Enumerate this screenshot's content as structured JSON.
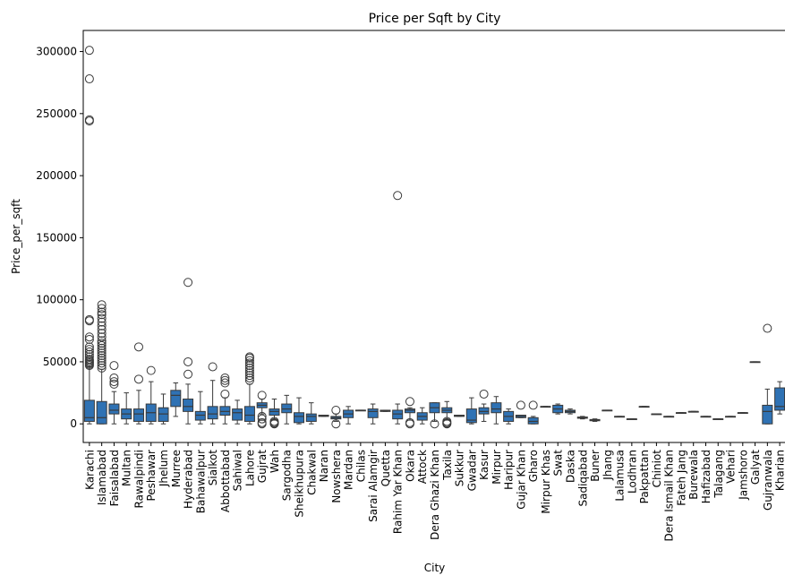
{
  "chart_data": {
    "type": "box",
    "title": "Price per Sqft by City",
    "xlabel": "City",
    "ylabel": "Price_per_sqft",
    "ylim": [
      -15000,
      317000
    ],
    "yticks": [
      0,
      50000,
      100000,
      150000,
      200000,
      250000,
      300000
    ],
    "ytick_labels": [
      "0",
      "50000",
      "100000",
      "150000",
      "200000",
      "250000",
      "300000"
    ],
    "box_color": "#2f72b4",
    "box_edge_color": "#3a3a3a",
    "grid": false,
    "categories": [
      "Karachi",
      "Islamabad",
      "Faisalabad",
      "Multan",
      "Rawalpindi",
      "Peshawar",
      "Jhelum",
      "Murree",
      "Hyderabad",
      "Bahawalpur",
      "Sialkot",
      "Abbottabad",
      "Sahiwal",
      "Lahore",
      "Gujrat",
      "Wah",
      "Sargodha",
      "Sheikhupura",
      "Chakwal",
      "Naran",
      "Nowshera",
      "Mardan",
      "Chilas",
      "Sarai Alamgir",
      "Quetta",
      "Rahim Yar Khan",
      "Okara",
      "Attock",
      "Dera Ghazi Khan",
      "Taxila",
      "Sukkur",
      "Gwadar",
      "Kasur",
      "Mirpur",
      "Haripur",
      "Gujar Khan",
      "Gharo",
      "Mirpur Khas",
      "Swat",
      "Daska",
      "Sadiqabad",
      "Buner",
      "Jhang",
      "Lalamusa",
      "Lodhran",
      "Pakpattan",
      "Chiniot",
      "Dera Ismail Khan",
      "Fateh Jang",
      "Burewala",
      "Hafizabad",
      "Talagang",
      "Vehari",
      "Jamshoro",
      "Galyat",
      "Gujranwala",
      "Kharian"
    ],
    "boxes": [
      {
        "whislo": 0,
        "q1": 2000,
        "med": 5000,
        "q3": 19000,
        "whishi": 46000,
        "fliers": [
          47000,
          48000,
          49000,
          50000,
          51000,
          52000,
          54000,
          56000,
          58000,
          60000,
          62000,
          68000,
          70000,
          83000,
          84000,
          244000,
          245000,
          278000,
          301000
        ]
      },
      {
        "whislo": 0,
        "q1": 0,
        "med": 5000,
        "q3": 18000,
        "whishi": 44000,
        "fliers": [
          45000,
          47000,
          49000,
          51000,
          53000,
          55000,
          57000,
          59000,
          61000,
          63000,
          65000,
          67000,
          70000,
          73000,
          76000,
          79000,
          82000,
          85000,
          88000,
          90000,
          93000,
          96000
        ]
      },
      {
        "whislo": 0,
        "q1": 8000,
        "med": 11000,
        "q3": 16000,
        "whishi": 26000,
        "fliers": [
          32000,
          34000,
          37000,
          47000
        ]
      },
      {
        "whislo": 0,
        "q1": 4000,
        "med": 8000,
        "q3": 12000,
        "whishi": 25000,
        "fliers": []
      },
      {
        "whislo": 0,
        "q1": 2000,
        "med": 8000,
        "q3": 12000,
        "whishi": 27000,
        "fliers": [
          36000,
          62000
        ]
      },
      {
        "whislo": 0,
        "q1": 2000,
        "med": 9000,
        "q3": 16000,
        "whishi": 34000,
        "fliers": [
          43000
        ]
      },
      {
        "whislo": 0,
        "q1": 2000,
        "med": 8000,
        "q3": 13000,
        "whishi": 24000,
        "fliers": []
      },
      {
        "whislo": 6000,
        "q1": 14000,
        "med": 23000,
        "q3": 27000,
        "whishi": 33000,
        "fliers": []
      },
      {
        "whislo": 0,
        "q1": 10000,
        "med": 14000,
        "q3": 20000,
        "whishi": 32000,
        "fliers": [
          40000,
          50000,
          114000
        ]
      },
      {
        "whislo": 0,
        "q1": 3000,
        "med": 7000,
        "q3": 10000,
        "whishi": 26000,
        "fliers": []
      },
      {
        "whislo": 0,
        "q1": 4000,
        "med": 8000,
        "q3": 14000,
        "whishi": 35000,
        "fliers": [
          46000
        ]
      },
      {
        "whislo": 0,
        "q1": 7000,
        "med": 10000,
        "q3": 14000,
        "whishi": 21000,
        "fliers": [
          24000,
          33000,
          35000,
          37000
        ]
      },
      {
        "whislo": 0,
        "q1": 3000,
        "med": 9000,
        "q3": 12000,
        "whishi": 19000,
        "fliers": []
      },
      {
        "whislo": 0,
        "q1": 2000,
        "med": 7000,
        "q3": 14000,
        "whishi": 32000,
        "fliers": [
          35000,
          37000,
          39000,
          41000,
          43000,
          45000,
          47000,
          49000,
          51000,
          53000,
          54000
        ]
      },
      {
        "whislo": 8000,
        "q1": 13000,
        "med": 15000,
        "q3": 17000,
        "whishi": 20000,
        "fliers": [
          0,
          1000,
          4000,
          6000,
          23000
        ]
      },
      {
        "whislo": 3000,
        "q1": 7000,
        "med": 10000,
        "q3": 12000,
        "whishi": 20000,
        "fliers": [
          0,
          500,
          1000,
          2000
        ]
      },
      {
        "whislo": 0,
        "q1": 9000,
        "med": 12000,
        "q3": 16000,
        "whishi": 23000,
        "fliers": []
      },
      {
        "whislo": 0,
        "q1": 1000,
        "med": 6000,
        "q3": 9000,
        "whishi": 21000,
        "fliers": []
      },
      {
        "whislo": 0,
        "q1": 2000,
        "med": 6000,
        "q3": 8000,
        "whishi": 17000,
        "fliers": []
      },
      {
        "whislo": 6000,
        "q1": 6000,
        "med": 6500,
        "q3": 7000,
        "whishi": 7000,
        "fliers": []
      },
      {
        "whislo": 2000,
        "q1": 4000,
        "med": 5000,
        "q3": 6000,
        "whishi": 8000,
        "fliers": [
          0,
          11000
        ]
      },
      {
        "whislo": 0,
        "q1": 5000,
        "med": 8000,
        "q3": 11000,
        "whishi": 14000,
        "fliers": []
      },
      {
        "whislo": 11000,
        "q1": 11000,
        "med": 11000,
        "q3": 11000,
        "whishi": 11000,
        "fliers": []
      },
      {
        "whislo": 0,
        "q1": 5000,
        "med": 10000,
        "q3": 12000,
        "whishi": 16000,
        "fliers": []
      },
      {
        "whislo": 10000,
        "q1": 10000,
        "med": 10500,
        "q3": 11000,
        "whishi": 11000,
        "fliers": []
      },
      {
        "whislo": 0,
        "q1": 4000,
        "med": 8000,
        "q3": 11000,
        "whishi": 16000,
        "fliers": [
          184000
        ]
      },
      {
        "whislo": 3000,
        "q1": 9000,
        "med": 11000,
        "q3": 12000,
        "whishi": 13000,
        "fliers": [
          0,
          1000,
          18000
        ]
      },
      {
        "whislo": 0,
        "q1": 3000,
        "med": 6000,
        "q3": 9000,
        "whishi": 13000,
        "fliers": []
      },
      {
        "whislo": 2000,
        "q1": 9000,
        "med": 13000,
        "q3": 17000,
        "whishi": 17000,
        "fliers": [
          0
        ]
      },
      {
        "whislo": 3000,
        "q1": 9000,
        "med": 11000,
        "q3": 13000,
        "whishi": 18000,
        "fliers": [
          0,
          500,
          1000,
          2000
        ]
      },
      {
        "whislo": 6000,
        "q1": 6000,
        "med": 6500,
        "q3": 7000,
        "whishi": 7000,
        "fliers": []
      },
      {
        "whislo": 0,
        "q1": 1000,
        "med": 3000,
        "q3": 12000,
        "whishi": 21000,
        "fliers": []
      },
      {
        "whislo": 2000,
        "q1": 8000,
        "med": 10000,
        "q3": 13000,
        "whishi": 16000,
        "fliers": [
          24000
        ]
      },
      {
        "whislo": 0,
        "q1": 9000,
        "med": 12000,
        "q3": 17000,
        "whishi": 22000,
        "fliers": []
      },
      {
        "whislo": 0,
        "q1": 2000,
        "med": 6000,
        "q3": 10000,
        "whishi": 12000,
        "fliers": []
      },
      {
        "whislo": 5000,
        "q1": 5000,
        "med": 6000,
        "q3": 7000,
        "whishi": 7000,
        "fliers": [
          15000
        ]
      },
      {
        "whislo": 0,
        "q1": 0,
        "med": 2000,
        "q3": 5000,
        "whishi": 6000,
        "fliers": [
          15000
        ]
      },
      {
        "whislo": 14000,
        "q1": 14000,
        "med": 14000,
        "q3": 14000,
        "whishi": 14000,
        "fliers": []
      },
      {
        "whislo": 8000,
        "q1": 9000,
        "med": 12000,
        "q3": 15000,
        "whishi": 16000,
        "fliers": []
      },
      {
        "whislo": 8000,
        "q1": 9000,
        "med": 10000,
        "q3": 11000,
        "whishi": 12000,
        "fliers": []
      },
      {
        "whislo": 4000,
        "q1": 4500,
        "med": 5000,
        "q3": 5500,
        "whishi": 6000,
        "fliers": []
      },
      {
        "whislo": 2000,
        "q1": 2500,
        "med": 3000,
        "q3": 3500,
        "whishi": 4000,
        "fliers": []
      },
      {
        "whislo": 11000,
        "q1": 11000,
        "med": 11000,
        "q3": 11000,
        "whishi": 11000,
        "fliers": []
      },
      {
        "whislo": 6000,
        "q1": 6000,
        "med": 6000,
        "q3": 6000,
        "whishi": 6000,
        "fliers": []
      },
      {
        "whislo": 4000,
        "q1": 4000,
        "med": 4000,
        "q3": 4000,
        "whishi": 4000,
        "fliers": []
      },
      {
        "whislo": 14000,
        "q1": 14000,
        "med": 14000,
        "q3": 14000,
        "whishi": 14000,
        "fliers": []
      },
      {
        "whislo": 8000,
        "q1": 8000,
        "med": 8000,
        "q3": 8000,
        "whishi": 8000,
        "fliers": []
      },
      {
        "whislo": 6000,
        "q1": 6000,
        "med": 6000,
        "q3": 6000,
        "whishi": 6000,
        "fliers": []
      },
      {
        "whislo": 9000,
        "q1": 9000,
        "med": 9000,
        "q3": 9000,
        "whishi": 9000,
        "fliers": []
      },
      {
        "whislo": 10000,
        "q1": 10000,
        "med": 10000,
        "q3": 10000,
        "whishi": 10000,
        "fliers": []
      },
      {
        "whislo": 6000,
        "q1": 6000,
        "med": 6000,
        "q3": 6000,
        "whishi": 6000,
        "fliers": []
      },
      {
        "whislo": 4000,
        "q1": 4000,
        "med": 4000,
        "q3": 4000,
        "whishi": 4000,
        "fliers": []
      },
      {
        "whislo": 6000,
        "q1": 6000,
        "med": 6000,
        "q3": 6000,
        "whishi": 6000,
        "fliers": []
      },
      {
        "whislo": 9000,
        "q1": 9000,
        "med": 9000,
        "q3": 9000,
        "whishi": 9000,
        "fliers": []
      },
      {
        "whislo": 50000,
        "q1": 50000,
        "med": 50000,
        "q3": 50000,
        "whishi": 50000,
        "fliers": []
      },
      {
        "whislo": 0,
        "q1": 0,
        "med": 10000,
        "q3": 15000,
        "whishi": 28000,
        "fliers": [
          77000
        ]
      },
      {
        "whislo": 8000,
        "q1": 11000,
        "med": 14000,
        "q3": 29000,
        "whishi": 34000,
        "fliers": []
      }
    ]
  }
}
